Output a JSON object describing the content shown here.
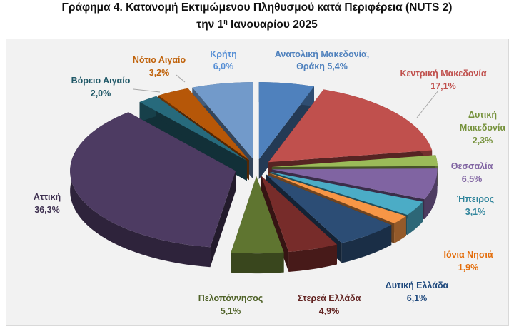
{
  "chart_data": {
    "type": "pie",
    "title": "Γράφημα 4. Κατανομή Εκτιμώμενου Πληθυσμού κατά Περιφέρεια (NUTS 2)",
    "subtitle_prefix": "την 1",
    "subtitle_sup": "η",
    "subtitle_suffix": " Ιανουαρίου 2025",
    "style": "3d-exploded",
    "slices": [
      {
        "label": "Ανατολική Μακεδονία, Θράκη",
        "value": 5.4,
        "text": "5,4%",
        "color": "#4f81bd",
        "text_color": "#4f81bd"
      },
      {
        "label": "Κεντρική Μακεδονία",
        "value": 17.1,
        "text": "17,1%",
        "color": "#c0504d",
        "text_color": "#c0504d"
      },
      {
        "label": "Δυτική Μακεδονία",
        "value": 2.3,
        "text": "2,3%",
        "color": "#9bbb59",
        "text_color": "#76923c"
      },
      {
        "label": "Θεσσαλία",
        "value": 6.5,
        "text": "6,5%",
        "color": "#8064a2",
        "text_color": "#8064a2"
      },
      {
        "label": "Ήπειρος",
        "value": 3.1,
        "text": "3,1%",
        "color": "#4bacc6",
        "text_color": "#31859c"
      },
      {
        "label": "Ιόνια Νησιά",
        "value": 1.9,
        "text": "1,9%",
        "color": "#f79646",
        "text_color": "#e36c09"
      },
      {
        "label": "Δυτική Ελλάδα",
        "value": 6.1,
        "text": "6,1%",
        "color": "#2c4d75",
        "text_color": "#1f497d"
      },
      {
        "label": "Στερεά Ελλάδα",
        "value": 4.9,
        "text": "4,9%",
        "color": "#772c2a",
        "text_color": "#632523"
      },
      {
        "label": "Πελοπόννησος",
        "value": 5.1,
        "text": "5,1%",
        "color": "#5f7530",
        "text_color": "#4f6228"
      },
      {
        "label": "Αττική",
        "value": 36.3,
        "text": "36,3%",
        "color": "#4d3b62",
        "text_color": "#3f3151"
      },
      {
        "label": "Βόρειο Αιγαίο",
        "value": 2.0,
        "text": "2,0%",
        "color": "#276a7c",
        "text_color": "#215968"
      },
      {
        "label": "Νότιο Αιγαίο",
        "value": 3.2,
        "text": "3,2%",
        "color": "#b65708",
        "text_color": "#c0620a"
      },
      {
        "label": "Κρήτη",
        "value": 6.0,
        "text": "6,0%",
        "color": "#729aca",
        "text_color": "#558ed5"
      }
    ]
  }
}
